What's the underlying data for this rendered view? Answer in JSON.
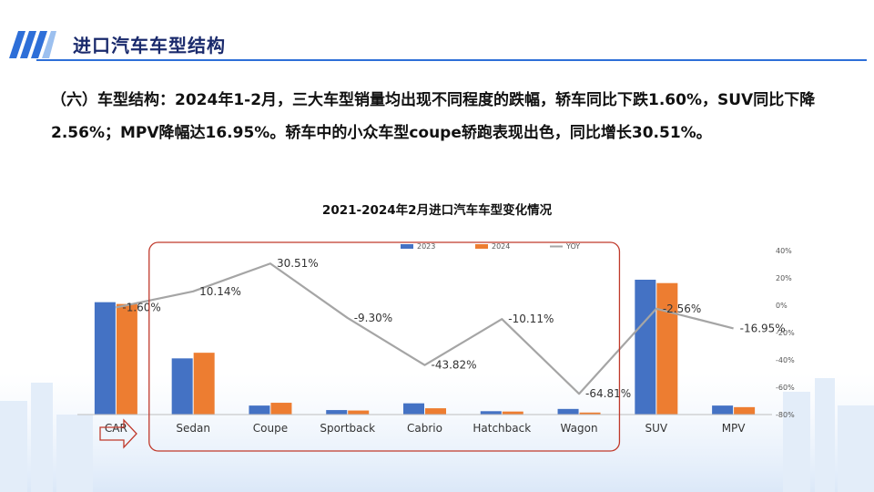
{
  "page": {
    "title": "进口汽车车型结构",
    "summary": "（六）车型结构：2024年1-2月，三大车型销量均出现不同程度的跌幅，轿车同比下跌1.60%，SUV同比下降2.56%；MPV降幅达16.95%。轿车中的小众车型coupe轿跑表现出色，同比增长30.51%。",
    "colors": {
      "accent": "#2e6fd8",
      "title": "#1a2a6c",
      "highlight_box": "#c0392b"
    }
  },
  "chart_data": {
    "type": "bar",
    "title": "2021-2024年2月进口汽车车型变化情况",
    "categories": [
      "CAR",
      "Sedan",
      "Coupe",
      "Sportback",
      "Cabrio",
      "Hatchback",
      "Wagon",
      "SUV",
      "MPV"
    ],
    "series": [
      {
        "name": "2023",
        "type": "bar",
        "color": "#4472c4",
        "values": [
          100,
          50,
          8,
          4,
          10,
          3,
          5,
          120,
          8
        ]
      },
      {
        "name": "2024",
        "type": "bar",
        "color": "#ed7d31",
        "values": [
          98.4,
          55,
          10.5,
          3.6,
          5.6,
          2.7,
          1.8,
          117,
          6.6
        ]
      },
      {
        "name": "YOY",
        "type": "line",
        "axis": "right",
        "color": "#a5a5a5",
        "values": [
          -1.6,
          10.14,
          30.51,
          -9.3,
          -43.82,
          -10.11,
          -64.81,
          -2.56,
          -16.95
        ],
        "labels": [
          "-1.60%",
          "10.14%",
          "30.51%",
          "-9.30%",
          "-43.82%",
          "-10.11%",
          "-64.81%",
          "-2.56%",
          "-16.95%"
        ]
      }
    ],
    "y2_axis": {
      "ylim": [
        -80,
        40
      ],
      "ticks": [
        "40%",
        "20%",
        "0%",
        "-20%",
        "-40%",
        "-60%",
        "-80%"
      ],
      "tick_values": [
        40,
        20,
        0,
        -20,
        -40,
        -60,
        -80
      ]
    },
    "legend": {
      "position": "top",
      "labels": [
        "2023",
        "2024",
        "YOY"
      ]
    },
    "grid": false,
    "highlight": {
      "from": "Sedan",
      "to": "Wagon"
    }
  }
}
